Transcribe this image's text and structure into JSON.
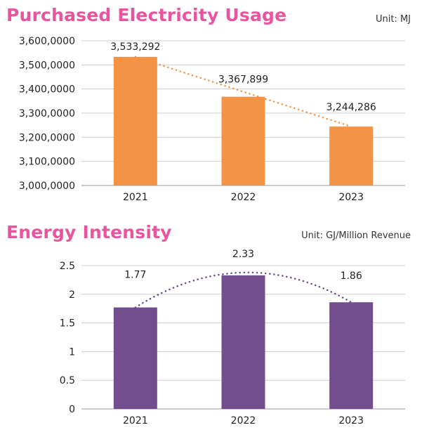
{
  "chart_data": [
    {
      "type": "bar",
      "title": "Purchased Electricity Usage",
      "unit": "Unit: MJ",
      "categories": [
        "2021",
        "2022",
        "2023"
      ],
      "values": [
        3533292,
        3367899,
        3244286
      ],
      "data_labels": [
        "3,533,292",
        "3,367,899",
        "3,244,286"
      ],
      "y_tick_labels": [
        "3,000,0000",
        "3,100,0000",
        "3,200,0000",
        "3,300,0000",
        "3,400,0000",
        "3,500,0000",
        "3,600,0000"
      ],
      "ylim": [
        3000000,
        3600000
      ],
      "grid": true,
      "trend_line": "straight dotted line from the 2021 bar top to the 2023 bar top",
      "color": "#f29345",
      "trend_color": "#f29345"
    },
    {
      "type": "bar",
      "title": "Energy Intensity",
      "unit": "Unit: GJ/Million Revenue",
      "categories": [
        "2021",
        "2022",
        "2023"
      ],
      "values": [
        1.77,
        2.33,
        1.86
      ],
      "data_labels": [
        "1.77",
        "2.33",
        "1.86"
      ],
      "y_tick_labels": [
        "0",
        "0.5",
        "1",
        "1.5",
        "2",
        "2.5"
      ],
      "ylim": [
        0,
        2.5
      ],
      "grid": true,
      "trend_line": "curved dotted arc through the bar tops",
      "color": "#744d8f",
      "trend_color": "#6a4a8c"
    }
  ]
}
